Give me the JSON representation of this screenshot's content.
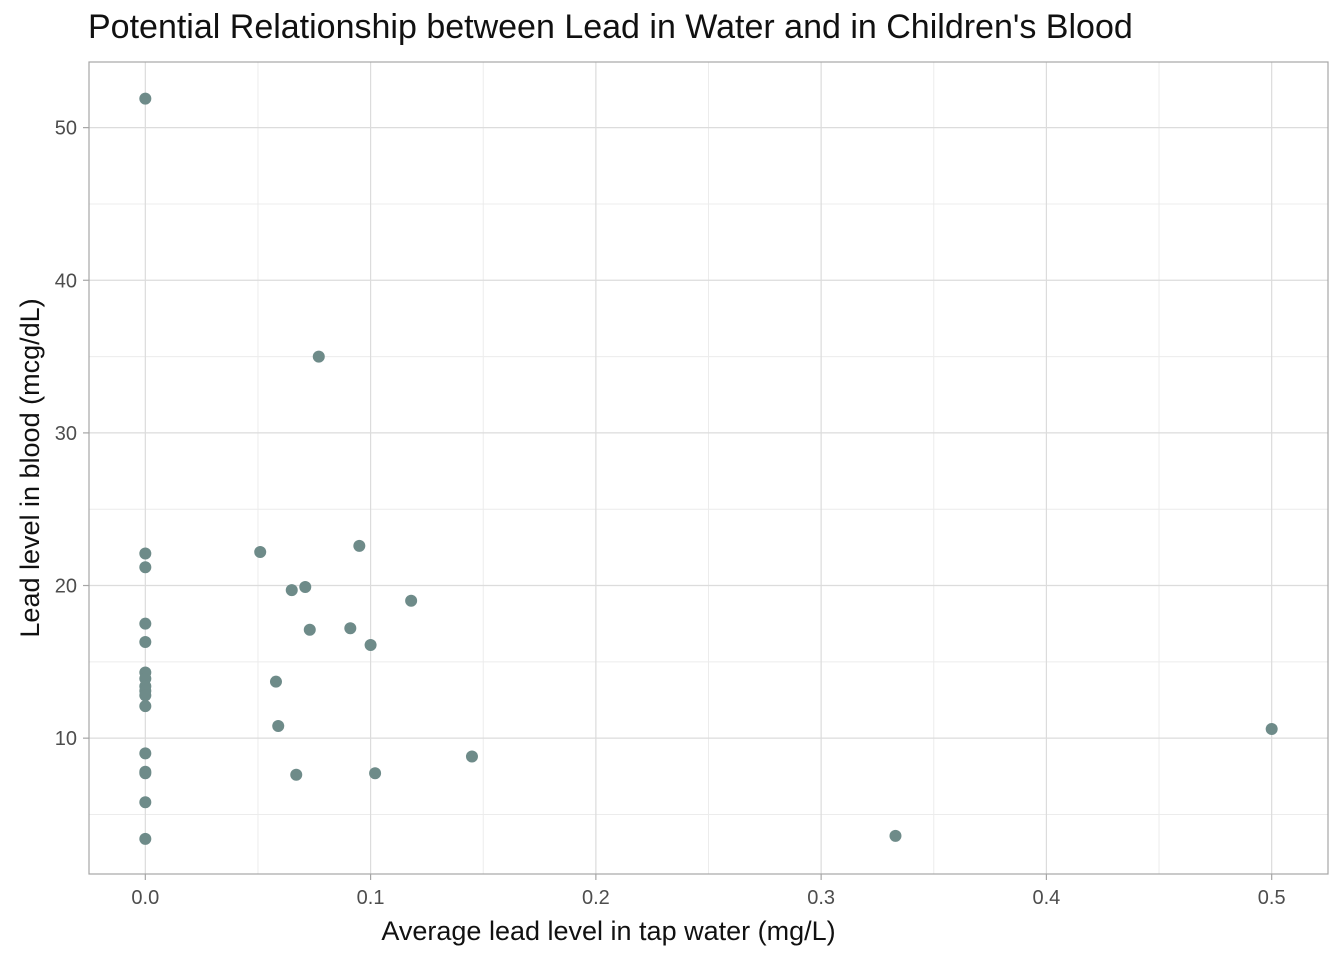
{
  "chart_data": {
    "type": "scatter",
    "title": "Potential Relationship between Lead in Water and in Children's Blood",
    "xlabel": "Average lead level in tap water (mg/L)",
    "ylabel": "Lead level in blood (mcg/dL)",
    "xlim": [
      -0.025,
      0.525
    ],
    "ylim": [
      1.1,
      54.3
    ],
    "x_ticks": [
      0.0,
      0.1,
      0.2,
      0.3,
      0.4,
      0.5
    ],
    "x_tick_labels": [
      "0.0",
      "0.1",
      "0.2",
      "0.3",
      "0.4",
      "0.5"
    ],
    "y_ticks": [
      10,
      20,
      30,
      40,
      50
    ],
    "y_tick_labels": [
      "10",
      "20",
      "30",
      "40",
      "50"
    ],
    "grid": true,
    "point_color": "#6e8b89",
    "points": [
      {
        "x": 0.0,
        "y": 51.9
      },
      {
        "x": 0.0,
        "y": 22.1
      },
      {
        "x": 0.0,
        "y": 21.2
      },
      {
        "x": 0.0,
        "y": 17.5
      },
      {
        "x": 0.0,
        "y": 16.3
      },
      {
        "x": 0.0,
        "y": 14.3
      },
      {
        "x": 0.0,
        "y": 13.9
      },
      {
        "x": 0.0,
        "y": 13.4
      },
      {
        "x": 0.0,
        "y": 13.1
      },
      {
        "x": 0.0,
        "y": 12.8
      },
      {
        "x": 0.0,
        "y": 12.1
      },
      {
        "x": 0.0,
        "y": 9.0
      },
      {
        "x": 0.0,
        "y": 7.8
      },
      {
        "x": 0.0,
        "y": 7.7
      },
      {
        "x": 0.0,
        "y": 5.8
      },
      {
        "x": 0.0,
        "y": 3.4
      },
      {
        "x": 0.051,
        "y": 22.2
      },
      {
        "x": 0.058,
        "y": 13.7
      },
      {
        "x": 0.059,
        "y": 10.8
      },
      {
        "x": 0.065,
        "y": 19.7
      },
      {
        "x": 0.067,
        "y": 7.6
      },
      {
        "x": 0.071,
        "y": 19.9
      },
      {
        "x": 0.073,
        "y": 17.1
      },
      {
        "x": 0.077,
        "y": 35.0
      },
      {
        "x": 0.091,
        "y": 17.2
      },
      {
        "x": 0.095,
        "y": 22.6
      },
      {
        "x": 0.1,
        "y": 16.1
      },
      {
        "x": 0.102,
        "y": 7.7
      },
      {
        "x": 0.118,
        "y": 19.0
      },
      {
        "x": 0.145,
        "y": 8.8
      },
      {
        "x": 0.333,
        "y": 3.6
      },
      {
        "x": 0.5,
        "y": 10.6
      }
    ]
  }
}
